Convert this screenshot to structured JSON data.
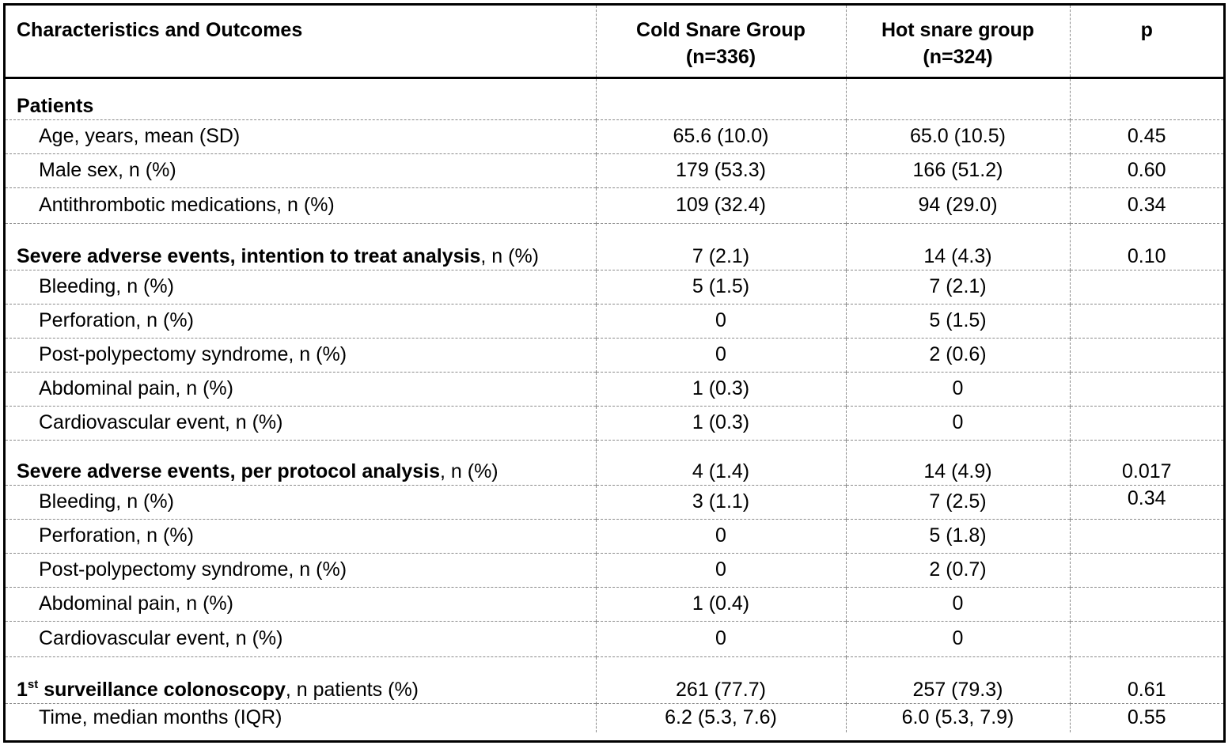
{
  "columns": {
    "label": "Characteristics and Outcomes",
    "cold_line1": "Cold Snare Group",
    "cold_line2": "(n=336)",
    "hot_line1": "Hot snare group",
    "hot_line2": "(n=324)",
    "p": "p"
  },
  "sections": {
    "patients": {
      "title": "Patients",
      "rows": [
        {
          "label": "Age, years, mean (SD)",
          "cold": "65.6 (10.0)",
          "hot": "65.0 (10.5)",
          "p": "0.45"
        },
        {
          "label": "Male sex, n (%)",
          "cold": "179 (53.3)",
          "hot": "166 (51.2)",
          "p": "0.60"
        },
        {
          "label": "Antithrombotic medications, n (%)",
          "cold": "109 (32.4)",
          "hot": "94 (29.0)",
          "p": "0.34"
        }
      ]
    },
    "itt": {
      "title_bold": "Severe adverse events, intention to treat analysis",
      "title_rest": ", n (%)",
      "cold": "7 (2.1)",
      "hot": "14 (4.3)",
      "p": "0.10",
      "rows": [
        {
          "label": "Bleeding, n (%)",
          "cold": "5 (1.5)",
          "hot": "7 (2.1)",
          "p": ""
        },
        {
          "label": "Perforation, n (%)",
          "cold": "0",
          "hot": "5 (1.5)",
          "p": ""
        },
        {
          "label": "Post-polypectomy syndrome, n (%)",
          "cold": "0",
          "hot": "2 (0.6)",
          "p": ""
        },
        {
          "label": "Abdominal pain, n (%)",
          "cold": "1 (0.3)",
          "hot": "0",
          "p": ""
        },
        {
          "label": "Cardiovascular event, n (%)",
          "cold": "1 (0.3)",
          "hot": "0",
          "p": ""
        }
      ]
    },
    "pp": {
      "title_bold": "Severe adverse events, per protocol analysis",
      "title_rest": ", n (%)",
      "cold": "4 (1.4)",
      "hot": "14 (4.9)",
      "p": "0.017",
      "rows": [
        {
          "label": "Bleeding, n (%)",
          "cold": "3 (1.1)",
          "hot": "7 (2.5)",
          "p": "0.34"
        },
        {
          "label": "Perforation, n (%)",
          "cold": "0",
          "hot": "5 (1.8)",
          "p": ""
        },
        {
          "label": "Post-polypectomy syndrome, n (%)",
          "cold": "0",
          "hot": "2 (0.7)",
          "p": ""
        },
        {
          "label": "Abdominal pain, n (%)",
          "cold": "1 (0.4)",
          "hot": "0",
          "p": ""
        },
        {
          "label": "Cardiovascular event, n (%)",
          "cold": "0",
          "hot": "0",
          "p": ""
        }
      ]
    },
    "surv": {
      "title_num": "1",
      "title_sup": "st",
      "title_bold": " surveillance colonoscopy",
      "title_rest": ", n patients (%)",
      "cold": "261 (77.7)",
      "hot": "257 (79.3)",
      "p": "0.61",
      "rows": [
        {
          "label": "Time, median months (IQR)",
          "cold": "6.2 (5.3, 7.6)",
          "hot": "6.0 (5.3, 7.9)",
          "p": "0.55"
        }
      ]
    }
  }
}
